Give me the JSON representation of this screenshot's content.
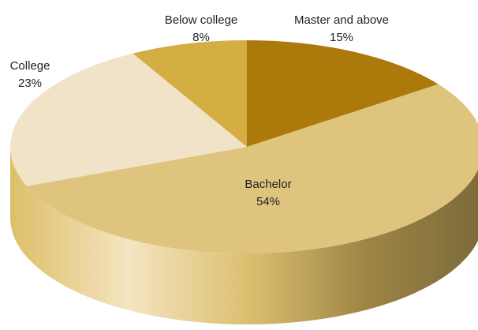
{
  "chart_data": {
    "type": "pie",
    "style": "3d",
    "slices": [
      {
        "label": "Master and above",
        "value": 15,
        "value_label": "15%",
        "color": "#ab7a0a"
      },
      {
        "label": "Bachelor",
        "value": 54,
        "value_label": "54%",
        "color": "#dfc47e"
      },
      {
        "label": "College",
        "value": 23,
        "value_label": "23%",
        "color": "#f1e3c7"
      },
      {
        "label": "Below college",
        "value": 8,
        "value_label": "8%",
        "color": "#d4ad43"
      }
    ],
    "side_colors": [
      "#dcbf68",
      "#f5e4c0",
      "#dcc071",
      "#9e8544",
      "#7b6a3a"
    ]
  }
}
